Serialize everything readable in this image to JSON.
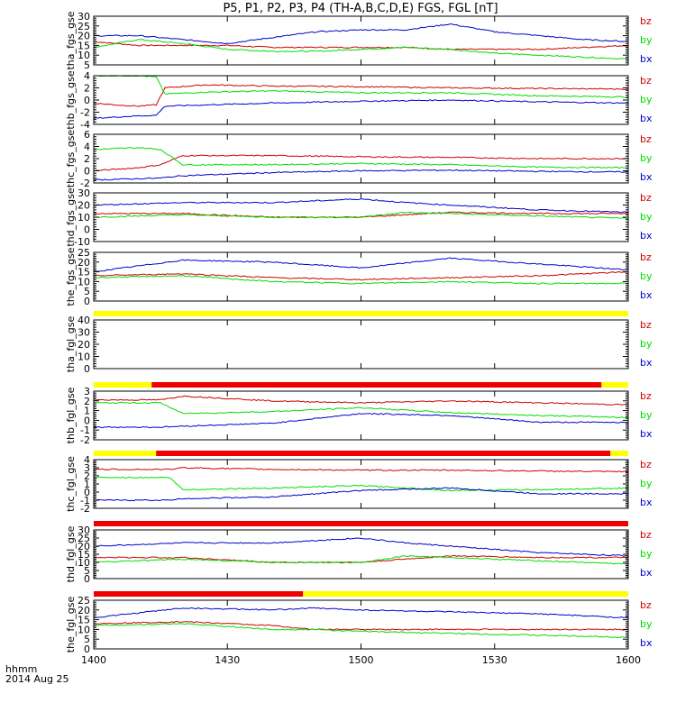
{
  "title": "P5, P1, P2, P3, P4 (TH-A,B,C,D,E) FGS, FGL [nT]",
  "time_axis": {
    "ticks": [
      "1400",
      "1430",
      "1500",
      "1530",
      "1600"
    ],
    "label_line1": "hhmm",
    "label_line2": "2014 Aug 25"
  },
  "colors": {
    "bx": "#0000cc",
    "by": "#00dd00",
    "bz": "#cc0000",
    "axis": "#000000",
    "bar_yellow": "#ffff00",
    "bar_red": "#ee0000",
    "bar_black": "#000000"
  },
  "chart_data": [
    {
      "type": "line",
      "ylabel": "tha_fgs_gse",
      "ylim": [
        5,
        30
      ],
      "yticks": [
        "5",
        "10",
        "15",
        "20",
        "25",
        "30"
      ],
      "series": [
        {
          "name": "bz",
          "t": [
            0,
            10,
            20,
            30,
            40,
            50,
            60,
            70,
            80,
            90,
            100,
            110,
            120
          ],
          "y": [
            17,
            15,
            15,
            15,
            14,
            14,
            14,
            14,
            13,
            13,
            13,
            14,
            15
          ]
        },
        {
          "name": "by",
          "t": [
            0,
            10,
            20,
            30,
            40,
            50,
            60,
            70,
            80,
            90,
            100,
            110,
            120
          ],
          "y": [
            14,
            18,
            16,
            13,
            12,
            12,
            13,
            14,
            13,
            11,
            10,
            9,
            8
          ]
        },
        {
          "name": "bx",
          "t": [
            0,
            10,
            20,
            30,
            40,
            50,
            60,
            70,
            80,
            90,
            100,
            110,
            120
          ],
          "y": [
            20,
            20,
            18,
            16,
            19,
            22,
            23,
            23,
            26,
            22,
            20,
            18,
            17
          ]
        }
      ]
    },
    {
      "type": "line",
      "ylabel": "thb_fgs_gse",
      "ylim": [
        -4,
        4
      ],
      "yticks": [
        "-4",
        "-2",
        "0",
        "2",
        "4"
      ],
      "series": [
        {
          "name": "bz",
          "t": [
            0,
            5,
            10,
            14,
            16,
            25,
            40,
            60,
            80,
            100,
            120
          ],
          "y": [
            -0.5,
            -0.8,
            -1,
            -0.8,
            2,
            2.5,
            2.3,
            2.2,
            2.0,
            1.9,
            1.8
          ]
        },
        {
          "name": "by",
          "t": [
            0,
            5,
            10,
            14,
            16,
            25,
            40,
            60,
            80,
            100,
            120
          ],
          "y": [
            4,
            4,
            4,
            3.8,
            1,
            1.3,
            1.5,
            1.2,
            1.2,
            0.7,
            0.5
          ]
        },
        {
          "name": "bx",
          "t": [
            0,
            5,
            10,
            14,
            16,
            25,
            40,
            60,
            80,
            100,
            120
          ],
          "y": [
            -3,
            -2.8,
            -2.6,
            -2.5,
            -1,
            -0.8,
            -0.5,
            -0.2,
            0,
            -0.3,
            -0.5
          ]
        }
      ]
    },
    {
      "type": "line",
      "ylabel": "thc_fgs_gse",
      "ylim": [
        -2,
        6
      ],
      "yticks": [
        "-2",
        "0",
        "2",
        "4",
        "6"
      ],
      "series": [
        {
          "name": "bz",
          "t": [
            0,
            10,
            15,
            20,
            40,
            60,
            80,
            100,
            120
          ],
          "y": [
            0,
            0.5,
            1,
            2.5,
            2.5,
            2.3,
            2.2,
            2.0,
            2.0
          ]
        },
        {
          "name": "by",
          "t": [
            0,
            10,
            15,
            20,
            40,
            60,
            80,
            100,
            120
          ],
          "y": [
            3.5,
            3.8,
            3.5,
            1,
            1,
            1.2,
            1.0,
            0.6,
            0.5
          ]
        },
        {
          "name": "bx",
          "t": [
            0,
            10,
            15,
            20,
            40,
            60,
            80,
            100,
            120
          ],
          "y": [
            -1.5,
            -1.3,
            -1.2,
            -0.8,
            -0.3,
            0,
            0.1,
            -0.1,
            -0.2
          ]
        }
      ]
    },
    {
      "type": "line",
      "ylabel": "thd_fgs_gse",
      "ylim": [
        -10,
        30
      ],
      "yticks": [
        "-10",
        "0",
        "10",
        "20",
        "30"
      ],
      "series": [
        {
          "name": "bz",
          "t": [
            0,
            20,
            40,
            60,
            70,
            80,
            100,
            120
          ],
          "y": [
            13,
            13,
            10,
            10,
            12,
            14,
            13,
            13
          ]
        },
        {
          "name": "by",
          "t": [
            0,
            20,
            40,
            60,
            70,
            80,
            100,
            120
          ],
          "y": [
            10,
            12,
            10,
            10,
            14,
            13,
            11,
            9
          ]
        },
        {
          "name": "bx",
          "t": [
            0,
            20,
            40,
            60,
            70,
            80,
            100,
            120
          ],
          "y": [
            20,
            22,
            22,
            25,
            22,
            20,
            16,
            14
          ]
        }
      ]
    },
    {
      "type": "line",
      "ylabel": "the_fgs_gse",
      "ylim": [
        0,
        25
      ],
      "yticks": [
        "0",
        "5",
        "10",
        "15",
        "20",
        "25"
      ],
      "series": [
        {
          "name": "bz",
          "t": [
            0,
            20,
            40,
            60,
            80,
            100,
            120
          ],
          "y": [
            13,
            14,
            12,
            11,
            12,
            13,
            15
          ]
        },
        {
          "name": "by",
          "t": [
            0,
            20,
            40,
            60,
            80,
            100,
            120
          ],
          "y": [
            12,
            13,
            10,
            9,
            10,
            9,
            9
          ]
        },
        {
          "name": "bx",
          "t": [
            0,
            20,
            40,
            60,
            80,
            100,
            120
          ],
          "y": [
            15,
            21,
            20,
            17,
            22,
            19,
            16
          ]
        }
      ]
    },
    {
      "type": "line",
      "ylabel": "tha_fgl_gse",
      "ylim": [
        0,
        40
      ],
      "yticks": [
        "0",
        "10",
        "20",
        "30",
        "40"
      ],
      "series": []
    },
    {
      "type": "line",
      "ylabel": "thb_fgl_gse",
      "ylim": [
        -2,
        3
      ],
      "yticks": [
        "-2",
        "-1",
        "0",
        "1",
        "2",
        "3"
      ],
      "series": [
        {
          "name": "bz",
          "t": [
            0,
            15,
            20,
            40,
            60,
            80,
            100,
            120
          ],
          "y": [
            2.1,
            2.1,
            2.5,
            2.0,
            1.8,
            2.0,
            1.8,
            1.6
          ]
        },
        {
          "name": "by",
          "t": [
            0,
            15,
            20,
            40,
            60,
            80,
            100,
            120
          ],
          "y": [
            1.8,
            1.8,
            0.7,
            0.9,
            1.3,
            0.8,
            0.5,
            0.3
          ]
        },
        {
          "name": "bx",
          "t": [
            0,
            15,
            20,
            40,
            60,
            80,
            100,
            120
          ],
          "y": [
            -0.7,
            -0.7,
            -0.6,
            -0.3,
            0.7,
            0.5,
            -0.2,
            -0.2
          ]
        }
      ]
    },
    {
      "type": "line",
      "ylabel": "thc_fgl_gse",
      "ylim": [
        -2,
        4
      ],
      "yticks": [
        "-2",
        "-1",
        "0",
        "1",
        "2",
        "3",
        "4"
      ],
      "series": [
        {
          "name": "bz",
          "t": [
            0,
            17,
            20,
            40,
            60,
            80,
            100,
            120
          ],
          "y": [
            2.8,
            2.8,
            3.0,
            2.8,
            2.7,
            2.7,
            2.6,
            2.5
          ]
        },
        {
          "name": "by",
          "t": [
            0,
            17,
            20,
            40,
            60,
            80,
            100,
            120
          ],
          "y": [
            1.8,
            1.8,
            0.3,
            0.5,
            0.8,
            0.2,
            0.3,
            0.5
          ]
        },
        {
          "name": "bx",
          "t": [
            0,
            17,
            20,
            40,
            60,
            80,
            100,
            120
          ],
          "y": [
            -1.0,
            -1.0,
            -0.8,
            -0.6,
            0.2,
            0.5,
            -0.2,
            -0.2
          ]
        }
      ]
    },
    {
      "type": "line",
      "ylabel": "thd_fgl_gse",
      "ylim": [
        0,
        30
      ],
      "yticks": [
        "0",
        "5",
        "10",
        "15",
        "20",
        "25",
        "30"
      ],
      "series": [
        {
          "name": "bz",
          "t": [
            0,
            20,
            40,
            60,
            70,
            80,
            100,
            120
          ],
          "y": [
            13,
            13,
            10,
            10,
            12,
            14,
            13,
            13
          ]
        },
        {
          "name": "by",
          "t": [
            0,
            20,
            40,
            60,
            70,
            80,
            100,
            120
          ],
          "y": [
            10,
            12,
            10,
            10,
            14,
            13,
            11,
            9
          ]
        },
        {
          "name": "bx",
          "t": [
            0,
            20,
            40,
            60,
            70,
            80,
            100,
            120
          ],
          "y": [
            20,
            22,
            22,
            25,
            22,
            20,
            16,
            14
          ]
        }
      ]
    },
    {
      "type": "line",
      "ylabel": "the_fgl_gse",
      "ylim": [
        0,
        25
      ],
      "yticks": [
        "0",
        "5",
        "10",
        "15",
        "20",
        "25"
      ],
      "series": [
        {
          "name": "bz",
          "t": [
            0,
            20,
            40,
            49,
            60,
            80,
            100,
            120
          ],
          "y": [
            13,
            14,
            12,
            10,
            10,
            10,
            10,
            10
          ]
        },
        {
          "name": "by",
          "t": [
            0,
            20,
            40,
            49,
            60,
            80,
            100,
            120
          ],
          "y": [
            12,
            13,
            10,
            10,
            9,
            8,
            7,
            6
          ]
        },
        {
          "name": "bx",
          "t": [
            0,
            20,
            40,
            49,
            60,
            80,
            100,
            120
          ],
          "y": [
            16,
            21,
            20,
            21,
            20,
            19,
            18,
            16
          ]
        }
      ]
    }
  ],
  "status_bars": [
    {
      "between_panels": [
        4,
        5
      ],
      "segments": [
        {
          "t0": 0,
          "t1": 120,
          "color": "yellow"
        }
      ]
    },
    {
      "between_panels": [
        5,
        6
      ],
      "segments": [
        {
          "t0": 0,
          "t1": 13,
          "color": "yellow"
        },
        {
          "t0": 13,
          "t1": 114,
          "color": "red"
        },
        {
          "t0": 114,
          "t1": 120,
          "color": "yellow"
        }
      ]
    },
    {
      "between_panels": [
        6,
        7
      ],
      "segments": [
        {
          "t0": 0,
          "t1": 14,
          "color": "yellow"
        },
        {
          "t0": 14,
          "t1": 116,
          "color": "red"
        },
        {
          "t0": 116,
          "t1": 120,
          "color": "yellow"
        }
      ]
    },
    {
      "between_panels": [
        7,
        8
      ],
      "segments": [
        {
          "t0": 0,
          "t1": 120,
          "color": "red"
        }
      ]
    },
    {
      "between_panels": [
        8,
        9
      ],
      "segments": [
        {
          "t0": 0,
          "t1": 47,
          "color": "red"
        },
        {
          "t0": 47,
          "t1": 120,
          "color": "yellow"
        }
      ]
    }
  ]
}
